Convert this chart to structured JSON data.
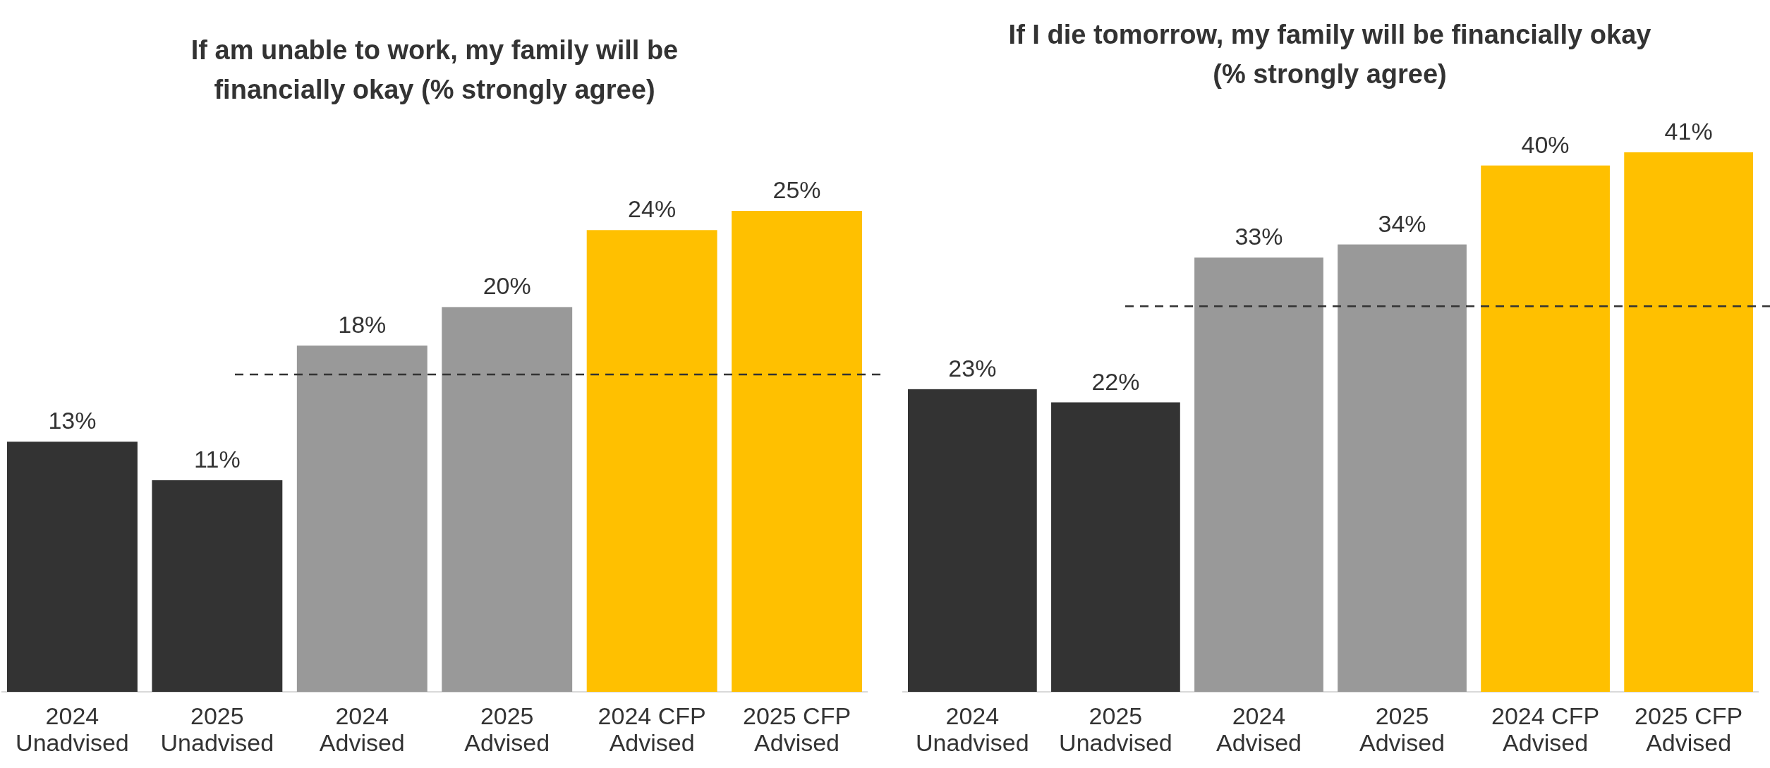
{
  "chart_data": [
    {
      "type": "bar",
      "title": "If am unable to work, my family will be financially okay (% strongly agree)",
      "categories": [
        "2024 Unadvised",
        "2025 Unadvised",
        "2024 Advised",
        "2025 Advised",
        "2024 CFP Advised",
        "2025 CFP Advised"
      ],
      "values": [
        13,
        11,
        18,
        20,
        24,
        25
      ],
      "colors": [
        "#333333",
        "#333333",
        "#999999",
        "#999999",
        "#ffc000",
        "#ffc000"
      ],
      "value_labels": [
        "13%",
        "11%",
        "18%",
        "20%",
        "24%",
        "25%"
      ],
      "ref_lines": [
        {
          "axis": "y",
          "value": 16.5,
          "label": null,
          "color": "#333333",
          "line_style": "dashed"
        }
      ]
    },
    {
      "type": "bar",
      "title": "If I die tomorrow, my family will be financially okay (% strongly agree)",
      "categories": [
        "2024 Unadvised",
        "2025 Unadvised",
        "2024 Advised",
        "2025 Advised",
        "2024 CFP Advised",
        "2025 CFP Advised"
      ],
      "values": [
        23,
        22,
        33,
        34,
        40,
        41
      ],
      "colors": [
        "#333333",
        "#333333",
        "#999999",
        "#999999",
        "#ffc000",
        "#ffc000"
      ],
      "value_labels": [
        "23%",
        "22%",
        "33%",
        "34%",
        "40%",
        "41%"
      ],
      "ref_lines": [
        {
          "axis": "y",
          "value": 29.3,
          "label": null,
          "color": "#333333",
          "line_style": "dashed"
        }
      ]
    }
  ]
}
